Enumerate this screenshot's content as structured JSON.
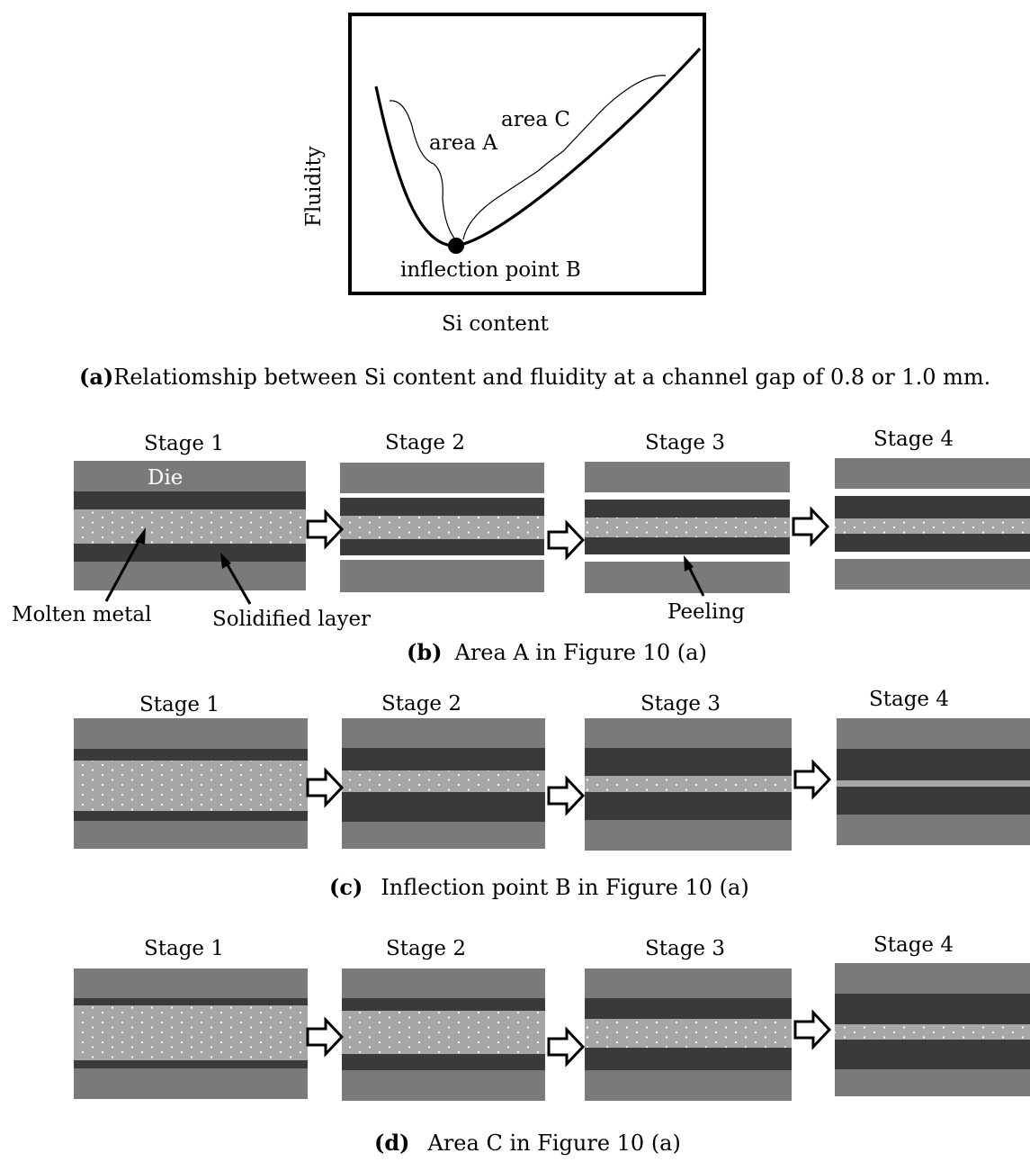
{
  "fig_a": {
    "y_axis_label": "Fluidity",
    "x_axis_label": "Si content",
    "area_a": "area A",
    "area_c": "area C",
    "point_b": "inflection point B",
    "caption_tag": "(a)",
    "caption_text": "Relatiomship between Si content and fluidity at a channel gap of 0.8 or 1.0 mm."
  },
  "stage_labels": [
    "Stage 1",
    "Stage 2",
    "Stage 3",
    "Stage 4"
  ],
  "fig_b": {
    "die_label": "Die",
    "molten_metal": "Molten metal",
    "solidified_layer": "Solidified layer",
    "peeling": "Peeling",
    "caption_tag": "(b)",
    "caption_text": "Area A in Figure 10 (a)"
  },
  "fig_c": {
    "caption_tag": "(c)",
    "caption_text": "Inflection point B in Figure 10 (a)"
  },
  "fig_d": {
    "caption_tag": "(d)",
    "caption_text": "Area C in Figure 10 (a)"
  },
  "colors": {
    "die": "#7a7a7a",
    "solid_layer": "#3a3a3a",
    "molten": "#a6a6a6",
    "dots": "#ffffff"
  }
}
